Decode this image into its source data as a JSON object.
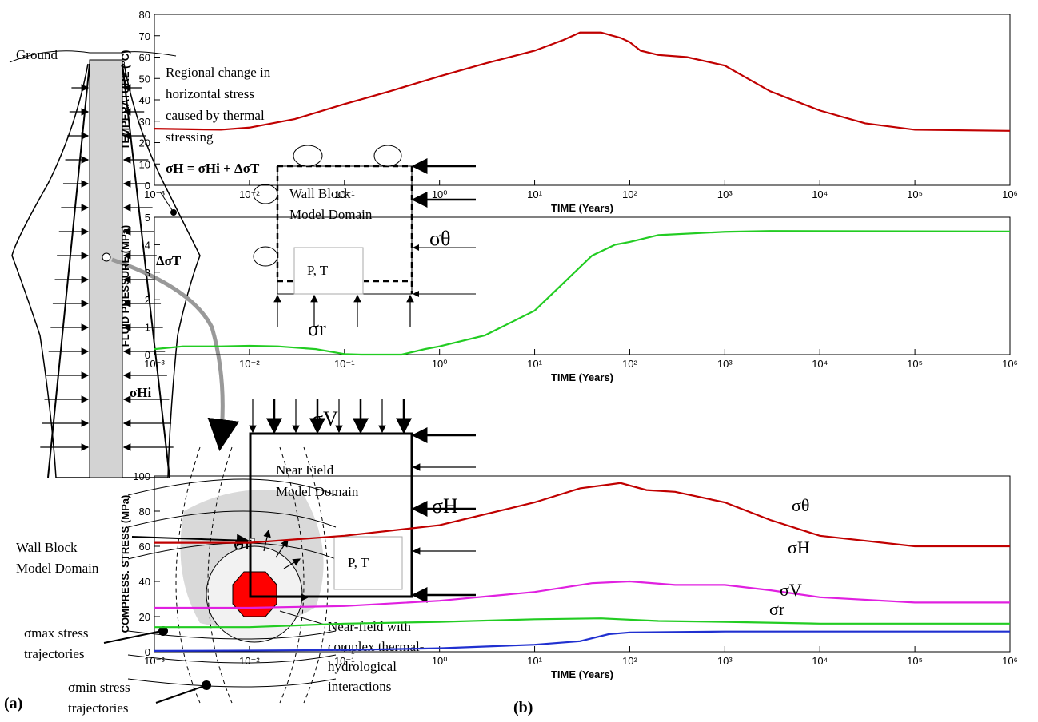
{
  "chart_data": [
    {
      "type": "line",
      "log_x": true,
      "xlabel": "TIME (Years)",
      "ylabel": "TEMPERATURE (°C)",
      "color": "#c00000",
      "x": [
        0.001,
        0.005,
        0.01,
        0.03,
        0.1,
        0.3,
        1,
        3,
        10,
        20,
        30,
        50,
        80,
        100,
        130,
        200,
        400,
        1000,
        3000,
        10000,
        30000,
        100000,
        1000000
      ],
      "values": [
        26.5,
        26,
        27,
        31,
        38,
        44,
        51,
        57,
        63,
        68,
        71.5,
        71.5,
        69,
        67,
        63,
        61,
        60,
        56,
        44,
        35,
        29,
        26,
        25.5
      ],
      "xlim": [
        0.001,
        1000000
      ],
      "xticks": [
        {
          "value": 0.001,
          "label": "10⁻³"
        },
        {
          "value": 0.01,
          "label": "10⁻²"
        },
        {
          "value": 0.1,
          "label": "10⁻¹"
        },
        {
          "value": 1,
          "label": "10⁰"
        },
        {
          "value": 10,
          "label": "10¹"
        },
        {
          "value": 100,
          "label": "10²"
        },
        {
          "value": 1000,
          "label": "10³"
        },
        {
          "value": 10000,
          "label": "10⁴"
        },
        {
          "value": 100000,
          "label": "10⁵"
        },
        {
          "value": 1000000,
          "label": "10⁶"
        }
      ],
      "ylim": [
        0,
        80
      ],
      "yticks": [
        0,
        10,
        20,
        30,
        40,
        50,
        60,
        70,
        80
      ]
    },
    {
      "type": "line",
      "log_x": true,
      "xlabel": "TIME (Years)",
      "ylabel": "FLUID PRESSURE (MPa)",
      "color": "#22cc22",
      "x": [
        0.001,
        0.002,
        0.005,
        0.01,
        0.02,
        0.05,
        0.1,
        0.15,
        0.4,
        0.7,
        1,
        3,
        10,
        20,
        40,
        70,
        100,
        200,
        1000,
        3000,
        1000000
      ],
      "values": [
        0.2,
        0.3,
        0.3,
        0.32,
        0.3,
        0.2,
        0.02,
        0,
        0,
        0.2,
        0.3,
        0.7,
        1.6,
        2.6,
        3.6,
        4.0,
        4.1,
        4.35,
        4.47,
        4.5,
        4.48
      ],
      "xlim": [
        0.001,
        1000000
      ],
      "xticks": [
        {
          "value": 0.001,
          "label": "10⁻³"
        },
        {
          "value": 0.01,
          "label": "10⁻²"
        },
        {
          "value": 0.1,
          "label": "10⁻¹"
        },
        {
          "value": 1,
          "label": "10⁰"
        },
        {
          "value": 10,
          "label": "10¹"
        },
        {
          "value": 100,
          "label": "10²"
        },
        {
          "value": 1000,
          "label": "10³"
        },
        {
          "value": 10000,
          "label": "10⁴"
        },
        {
          "value": 100000,
          "label": "10⁵"
        },
        {
          "value": 1000000,
          "label": "10⁶"
        }
      ],
      "ylim": [
        0,
        5
      ],
      "yticks": [
        0,
        1,
        2,
        3,
        4,
        5
      ]
    },
    {
      "type": "line",
      "log_x": true,
      "xlabel": "TIME (Years)",
      "ylabel": "COMPRESS. STRESS (MPa)",
      "series": [
        {
          "name": "σθ",
          "color": "#c00000",
          "x": [
            0.001,
            0.01,
            0.1,
            1,
            10,
            30,
            80,
            150,
            300,
            1000,
            3000,
            10000,
            100000,
            1000000
          ],
          "values": [
            62,
            62,
            66,
            72,
            85,
            93,
            96,
            92,
            91,
            85,
            75,
            66,
            60,
            60
          ]
        },
        {
          "name": "σH",
          "color": "#e020e0",
          "x": [
            0.001,
            0.01,
            0.1,
            1,
            10,
            40,
            100,
            300,
            1000,
            3000,
            10000,
            100000,
            1000000
          ],
          "values": [
            25,
            25,
            26,
            29,
            34,
            39,
            40,
            38,
            38,
            35,
            31,
            28,
            28
          ]
        },
        {
          "name": "σV",
          "color": "#22cc22",
          "x": [
            0.001,
            0.01,
            0.1,
            1,
            10,
            50,
            200,
            1000,
            10000,
            1000000
          ],
          "values": [
            14,
            14,
            16,
            17,
            18.5,
            19,
            17.5,
            17,
            16,
            16
          ]
        },
        {
          "name": "σr",
          "color": "#2030d0",
          "x": [
            0.001,
            0.01,
            0.1,
            1,
            10,
            30,
            60,
            100,
            1000,
            1000000
          ],
          "values": [
            0.5,
            0.7,
            1,
            2,
            4,
            6,
            10,
            11,
            11.5,
            11.5
          ]
        }
      ],
      "xlim": [
        0.001,
        1000000
      ],
      "xticks": [
        {
          "value": 0.001,
          "label": "10⁻³"
        },
        {
          "value": 0.01,
          "label": "10⁻²"
        },
        {
          "value": 0.1,
          "label": "10⁻¹"
        },
        {
          "value": 1,
          "label": "10⁰"
        },
        {
          "value": 10,
          "label": "10¹"
        },
        {
          "value": 100,
          "label": "10²"
        },
        {
          "value": 1000,
          "label": "10³"
        },
        {
          "value": 10000,
          "label": "10⁴"
        },
        {
          "value": 100000,
          "label": "10⁵"
        },
        {
          "value": 1000000,
          "label": "10⁶"
        }
      ],
      "ylim": [
        0,
        100
      ],
      "yticks": [
        0,
        20,
        40,
        60,
        80,
        100
      ]
    }
  ],
  "panel_b_label": "(b)",
  "diagram": {
    "panel_label": "(a)",
    "ground": "Ground",
    "regional_note": [
      "Regional change in",
      "horizontal stress",
      "caused by thermal",
      "stressing"
    ],
    "equation": "σH = σHi + ΔσT",
    "delta_sigma_t": "ΔσT",
    "sigma_hi": "σHi",
    "wall_block_box": [
      "Wall Block",
      "Model Domain"
    ],
    "wall_block_pt": "P, T",
    "wall_sigma_theta": "σθ",
    "wall_sigma_r": "σr",
    "near_sigma_v": "σV",
    "near_field_box": [
      "Near Field",
      "Model Domain"
    ],
    "near_sigma_h": "σH",
    "wall_block_callout": [
      "Wall Block",
      "Model Domain"
    ],
    "near_pt": "P, T",
    "near_sigma_r": "σr",
    "sigma_max": [
      "σmax stress",
      "trajectories"
    ],
    "sigma_min": [
      "σmin stress",
      "trajectories"
    ],
    "near_field_note": [
      "Near-field with",
      "complex thermal-",
      "hydrological",
      "interactions"
    ]
  }
}
